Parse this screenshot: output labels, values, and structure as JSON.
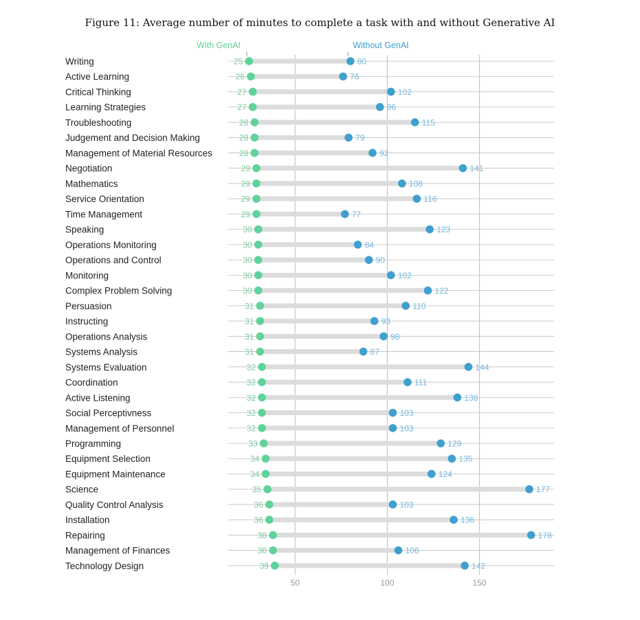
{
  "figure_title": "Figure 11: Average number of minutes to complete a task with and without Generative AI",
  "colors": {
    "with": "#5fd39a",
    "without": "#3f9fcf",
    "bar": "#dcdcdc",
    "grid": "#c6c6c6",
    "line": "#bdbdbd"
  },
  "chart_data": {
    "type": "dumbbell",
    "title": "Figure 11: Average number of minutes to complete a task with and without Generative AI",
    "xlabel": "",
    "ylabel": "",
    "xlim": [
      0,
      180
    ],
    "xticks": [
      50,
      100,
      150
    ],
    "grid": true,
    "legend": "top",
    "series_labels": [
      "With GenAI",
      "Without GenAI"
    ],
    "categories": [
      "Writing",
      "Active Learning",
      "Critical Thinking",
      "Learning Strategies",
      "Troubleshooting",
      "Judgement and Decision Making",
      "Management of Material Resources",
      "Negotiation",
      "Mathematics",
      "Service Orientation",
      "Time Management",
      "Speaking",
      "Operations Monitoring",
      "Operations and Control",
      "Monitoring",
      "Complex Problem Solving",
      "Persuasion",
      "Instructing",
      "Operations Analysis",
      "Systems Analysis",
      "Systems Evaluation",
      "Coordination",
      "Active Listening",
      "Social Perceptivness",
      "Management of Personnel",
      "Programming",
      "Equipment Selection",
      "Equipment Maintenance",
      "Science",
      "Quality Control Analysis",
      "Installation",
      "Repairing",
      "Management of Finances",
      "Technology Design"
    ],
    "with_genai": [
      25,
      26,
      27,
      27,
      28,
      28,
      28,
      29,
      29,
      29,
      29,
      30,
      30,
      30,
      30,
      30,
      31,
      31,
      31,
      31,
      32,
      32,
      32,
      32,
      32,
      33,
      34,
      34,
      35,
      36,
      36,
      38,
      38,
      39
    ],
    "without_genai": [
      80,
      76,
      102,
      96,
      115,
      79,
      92,
      141,
      108,
      116,
      77,
      123,
      84,
      90,
      102,
      122,
      110,
      93,
      98,
      87,
      144,
      111,
      138,
      103,
      103,
      129,
      135,
      124,
      177,
      103,
      136,
      178,
      106,
      142
    ]
  }
}
